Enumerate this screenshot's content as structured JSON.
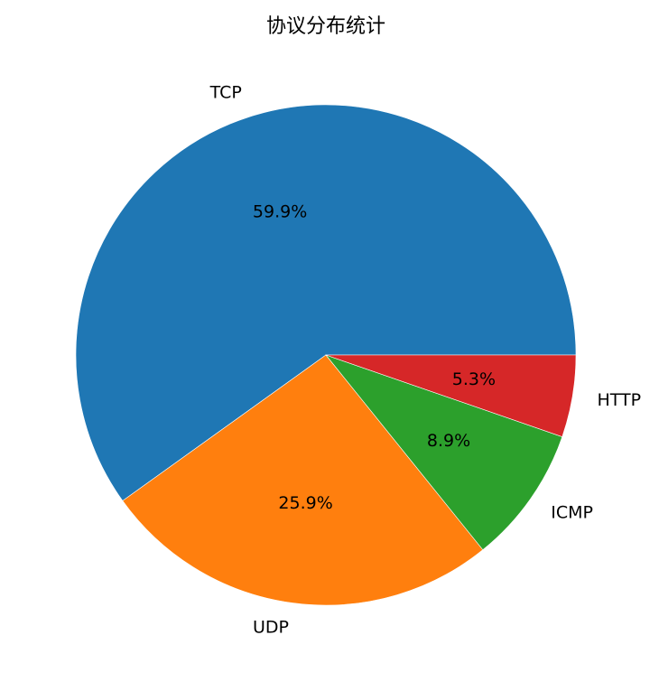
{
  "chart_data": {
    "type": "pie",
    "title": "协议分布统计",
    "categories": [
      "TCP",
      "UDP",
      "ICMP",
      "HTTP"
    ],
    "values": [
      59.9,
      25.9,
      8.9,
      5.3
    ],
    "percent_labels": [
      "59.9%",
      "25.9%",
      "8.9%",
      "5.3%"
    ],
    "colors": [
      "#1f77b4",
      "#ff7f0e",
      "#2ca02c",
      "#d62728"
    ],
    "start_angle_deg": 0,
    "direction": "counterclockwise",
    "legend": "none"
  }
}
